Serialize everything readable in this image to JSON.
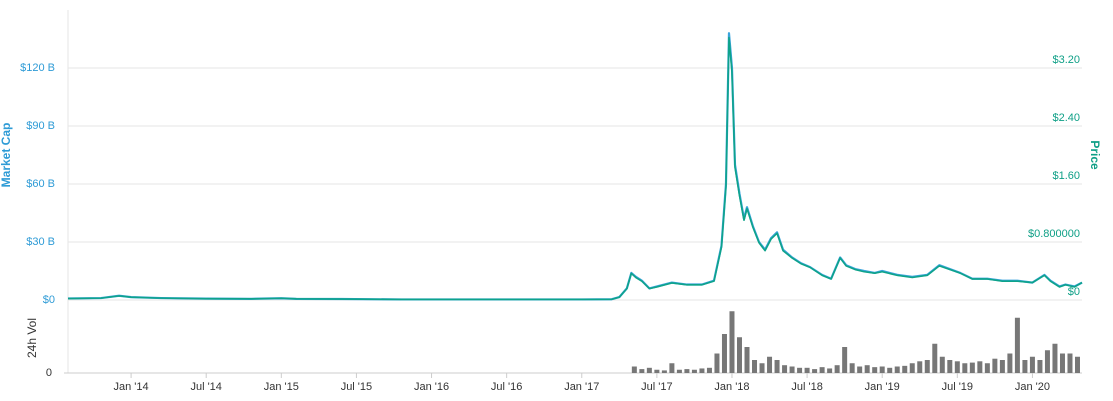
{
  "chart_data": [
    {
      "type": "line",
      "y_label": "Market Cap",
      "y2_label": "Price",
      "x": [
        2013.58,
        2013.8,
        2013.92,
        2014.0,
        2014.2,
        2014.5,
        2014.8,
        2015.0,
        2015.1,
        2015.4,
        2015.8,
        2016.2,
        2016.6,
        2017.0,
        2017.2,
        2017.25,
        2017.3,
        2017.33,
        2017.36,
        2017.4,
        2017.45,
        2017.5,
        2017.6,
        2017.7,
        2017.8,
        2017.88,
        2017.93,
        2017.96,
        2017.98,
        2018.0,
        2018.02,
        2018.05,
        2018.08,
        2018.1,
        2018.14,
        2018.18,
        2018.22,
        2018.26,
        2018.3,
        2018.34,
        2018.4,
        2018.46,
        2018.52,
        2018.6,
        2018.66,
        2018.72,
        2018.76,
        2018.82,
        2018.88,
        2018.95,
        2019.0,
        2019.1,
        2019.2,
        2019.3,
        2019.38,
        2019.45,
        2019.52,
        2019.6,
        2019.7,
        2019.8,
        2019.9,
        2020.0,
        2020.08,
        2020.12,
        2020.18,
        2020.22,
        2020.28,
        2020.33
      ],
      "series": [
        {
          "name": "Market Cap",
          "color": "#3ba4dc",
          "axis": "y",
          "values": [
            0.8,
            1.0,
            2.2,
            1.5,
            1.0,
            0.7,
            0.6,
            0.9,
            0.6,
            0.5,
            0.3,
            0.3,
            0.3,
            0.3,
            0.4,
            1.5,
            6,
            14,
            12,
            10,
            6,
            7,
            9,
            8,
            8,
            10,
            28,
            60,
            138,
            120,
            70,
            55,
            42,
            48,
            38,
            30,
            26,
            32,
            35,
            26,
            22,
            19,
            17,
            13,
            11,
            22,
            18,
            16,
            15,
            14,
            15,
            13,
            12,
            13,
            18,
            16,
            14,
            11,
            11,
            10,
            10,
            9,
            13,
            10,
            7,
            8,
            7,
            9
          ]
        },
        {
          "name": "Price",
          "color": "#0ea38a",
          "axis": "y2",
          "values": [
            0.02,
            0.026,
            0.057,
            0.039,
            0.026,
            0.018,
            0.016,
            0.024,
            0.016,
            0.013,
            0.008,
            0.008,
            0.008,
            0.008,
            0.01,
            0.039,
            0.157,
            0.367,
            0.31,
            0.26,
            0.157,
            0.18,
            0.235,
            0.21,
            0.21,
            0.26,
            0.73,
            1.57,
            3.62,
            3.14,
            1.83,
            1.44,
            1.1,
            1.26,
            1.0,
            0.79,
            0.68,
            0.84,
            0.92,
            0.68,
            0.58,
            0.5,
            0.45,
            0.34,
            0.29,
            0.58,
            0.47,
            0.42,
            0.39,
            0.37,
            0.39,
            0.34,
            0.31,
            0.34,
            0.47,
            0.42,
            0.37,
            0.29,
            0.29,
            0.26,
            0.26,
            0.24,
            0.34,
            0.26,
            0.18,
            0.21,
            0.18,
            0.24
          ]
        }
      ],
      "xlim": [
        2013.58,
        2020.33
      ],
      "ylim": [
        0,
        150
      ],
      "yticks": [
        {
          "value": 0,
          "label": "$0"
        },
        {
          "value": 30,
          "label": "$30 B"
        },
        {
          "value": 60,
          "label": "$60 B"
        },
        {
          "value": 90,
          "label": "$90 B"
        },
        {
          "value": 120,
          "label": "$120 B"
        }
      ],
      "y2lim": [
        0,
        4
      ],
      "y2ticks": [
        {
          "value": 0,
          "label": "$0"
        },
        {
          "value": 0.8,
          "label": "$0.800000"
        },
        {
          "value": 1.6,
          "label": "$1.60"
        },
        {
          "value": 2.4,
          "label": "$2.40"
        },
        {
          "value": 3.2,
          "label": "$3.20"
        }
      ],
      "grid": true
    },
    {
      "type": "bar",
      "y_label": "24h Vol",
      "color": "#777777",
      "x": [
        2017.35,
        2017.4,
        2017.45,
        2017.5,
        2017.55,
        2017.6,
        2017.65,
        2017.7,
        2017.75,
        2017.8,
        2017.85,
        2017.9,
        2017.95,
        2018.0,
        2018.05,
        2018.1,
        2018.15,
        2018.2,
        2018.25,
        2018.3,
        2018.35,
        2018.4,
        2018.45,
        2018.5,
        2018.55,
        2018.6,
        2018.65,
        2018.7,
        2018.75,
        2018.8,
        2018.85,
        2018.9,
        2018.95,
        2019.0,
        2019.05,
        2019.1,
        2019.15,
        2019.2,
        2019.25,
        2019.3,
        2019.35,
        2019.4,
        2019.45,
        2019.5,
        2019.55,
        2019.6,
        2019.65,
        2019.7,
        2019.75,
        2019.8,
        2019.85,
        2019.9,
        2019.95,
        2020.0,
        2020.05,
        2020.1,
        2020.15,
        2020.2,
        2020.25,
        2020.3
      ],
      "values": [
        1.0,
        0.6,
        0.8,
        0.5,
        0.4,
        1.5,
        0.5,
        0.6,
        0.5,
        0.7,
        0.8,
        3.0,
        6.0,
        9.5,
        5.5,
        4.0,
        2.0,
        1.5,
        2.5,
        2.0,
        1.2,
        1.0,
        0.8,
        0.8,
        0.6,
        0.9,
        0.7,
        1.2,
        4.0,
        1.5,
        1.0,
        1.2,
        0.9,
        1.0,
        0.8,
        1.0,
        1.1,
        1.5,
        1.8,
        2.0,
        4.5,
        2.5,
        2.0,
        1.8,
        1.5,
        1.6,
        1.8,
        1.5,
        2.2,
        2.0,
        3.0,
        8.5,
        2.0,
        2.5,
        2.0,
        3.5,
        4.5,
        3.0,
        3.0,
        2.5
      ],
      "xlim": [
        2013.58,
        2020.33
      ],
      "ylim": [
        0,
        10
      ],
      "yticks": [
        0
      ],
      "xticks": [
        {
          "value": 2014,
          "label": "Jan '14"
        },
        {
          "value": 2014.5,
          "label": "Jul '14"
        },
        {
          "value": 2015,
          "label": "Jan '15"
        },
        {
          "value": 2015.5,
          "label": "Jul '15"
        },
        {
          "value": 2016,
          "label": "Jan '16"
        },
        {
          "value": 2016.5,
          "label": "Jul '16"
        },
        {
          "value": 2017,
          "label": "Jan '17"
        },
        {
          "value": 2017.5,
          "label": "Jul '17"
        },
        {
          "value": 2018,
          "label": "Jan '18"
        },
        {
          "value": 2018.5,
          "label": "Jul '18"
        },
        {
          "value": 2019,
          "label": "Jan '19"
        },
        {
          "value": 2019.5,
          "label": "Jul '19"
        },
        {
          "value": 2020,
          "label": "Jan '20"
        }
      ]
    }
  ]
}
